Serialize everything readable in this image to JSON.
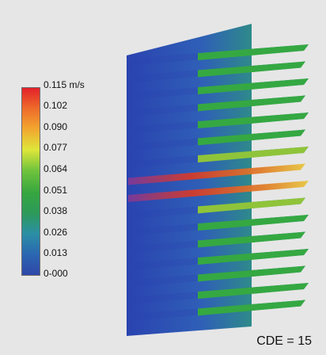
{
  "legend": {
    "labels": [
      "0.115 m/s",
      "0.102",
      "0.090",
      "0.077",
      "0.064",
      "0.051",
      "0.038",
      "0.026",
      "0.013",
      "0-000"
    ],
    "colors": [
      "#e3212a",
      "#ee6b2a",
      "#f2a72f",
      "#dfe63a",
      "#71c43c",
      "#36a63f",
      "#2d9a5a",
      "#2b8fa5",
      "#2b67b2",
      "#2f46a8"
    ]
  },
  "case_label": "CDE = 15",
  "colors": {
    "background": "#e6e6e6",
    "plate": "#2c48b8",
    "fin_green": "#35a842",
    "fin_hot": "#d23a2b"
  }
}
